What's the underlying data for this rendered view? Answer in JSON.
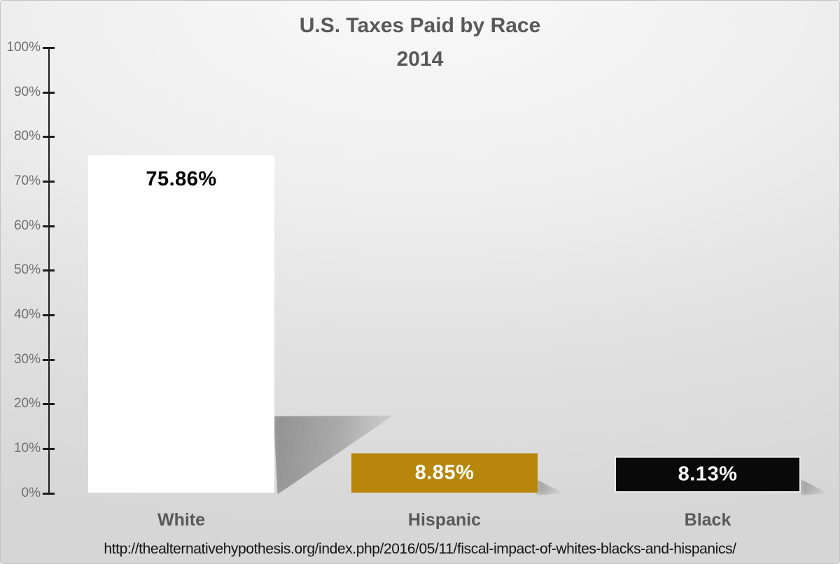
{
  "chart": {
    "title_line1": "U.S. Taxes Paid by Race",
    "title_line2": "2014",
    "source_url": "http://thealternativehypothesis.org/index.php/2016/05/11/fiscal-impact-of-whites-blacks-and-hispanics/"
  },
  "y_axis": {
    "tick_labels": [
      "100%",
      "90%",
      "80%",
      "70%",
      "60%",
      "50%",
      "40%",
      "30%",
      "20%",
      "10%",
      "0%"
    ]
  },
  "chart_data": {
    "type": "bar",
    "title": "U.S. Taxes Paid by Race 2014",
    "categories": [
      "White",
      "Hispanic",
      "Black"
    ],
    "values": [
      75.86,
      8.85,
      8.13
    ],
    "value_labels": [
      "75.86%",
      "8.85%",
      "8.13%"
    ],
    "xlabel": "",
    "ylabel": "",
    "ylim": [
      0,
      100
    ],
    "y_tick_step": 10,
    "grid": false,
    "legend": "none",
    "bar_colors": [
      "#FFFFFF",
      "#B8860B",
      "#0A0A0A"
    ],
    "value_label_colors": [
      "#000000",
      "#FFFFFF",
      "#FFFFFF"
    ],
    "background": "#E3E3E3",
    "source": "http://thealternativehypothesis.org/index.php/2016/05/11/fiscal-impact-of-whites-blacks-and-hispanics/"
  }
}
